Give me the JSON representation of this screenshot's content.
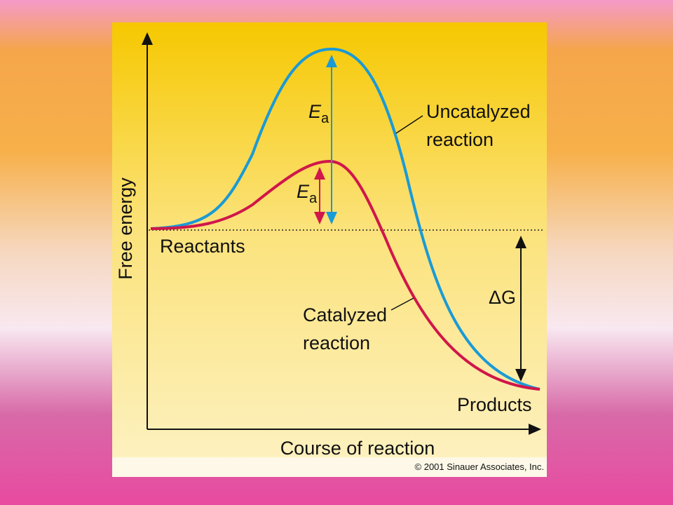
{
  "diagram": {
    "axes": {
      "y_label": "Free energy",
      "x_label": "Course of reaction"
    },
    "uncatalyzed": {
      "lines": [
        "Uncatalyzed",
        "reaction"
      ],
      "activation": {
        "symbol": "E",
        "subscript": "a"
      }
    },
    "catalyzed": {
      "lines": [
        "Catalyzed",
        "reaction"
      ],
      "activation": {
        "symbol": "E",
        "subscript": "a"
      }
    },
    "reactants": "Reactants",
    "products": "Products",
    "delta_g": "ΔG",
    "credit": "© 2001 Sinauer Associates, Inc."
  }
}
